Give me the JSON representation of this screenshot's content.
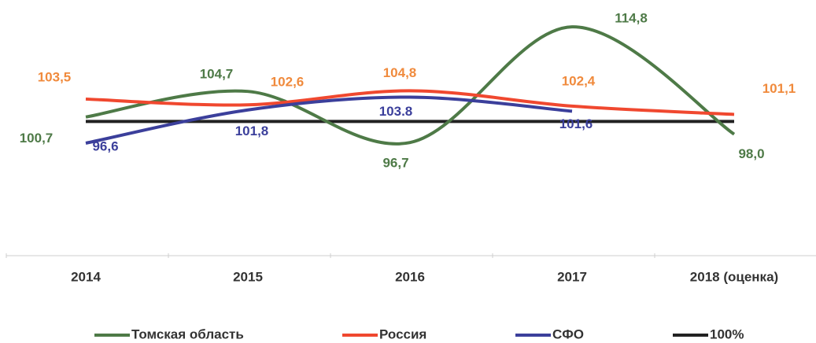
{
  "chart_data": {
    "type": "line",
    "categories": [
      "2014",
      "2015",
      "2016",
      "2017",
      "2018 (оценка)"
    ],
    "ylim": [
      79,
      119
    ],
    "series": [
      {
        "name": "Томская область",
        "color": "#4e7a47",
        "label_color": "#4e7a47",
        "values": [
          100.7,
          104.7,
          96.7,
          114.8,
          98.0
        ],
        "value_labels": [
          "100,7",
          "104,7",
          "96,7",
          "114,8",
          "98,0"
        ]
      },
      {
        "name": "Россия",
        "color": "#f0482f",
        "label_color": "#f08a3c",
        "values": [
          103.5,
          102.6,
          104.8,
          102.4,
          101.1
        ],
        "value_labels": [
          "103,5",
          "102,6",
          "104,8",
          "102,4",
          "101,1"
        ]
      },
      {
        "name": "СФО",
        "color": "#3b3f9b",
        "label_color": "#3b3f9b",
        "values": [
          96.6,
          101.8,
          103.8,
          101.6,
          null
        ],
        "value_labels": [
          "96,6",
          "101,8",
          "103.8",
          "101,6",
          null
        ]
      },
      {
        "name": "100%",
        "color": "#222222",
        "values": [
          100,
          100,
          100,
          100,
          100
        ]
      }
    ]
  }
}
